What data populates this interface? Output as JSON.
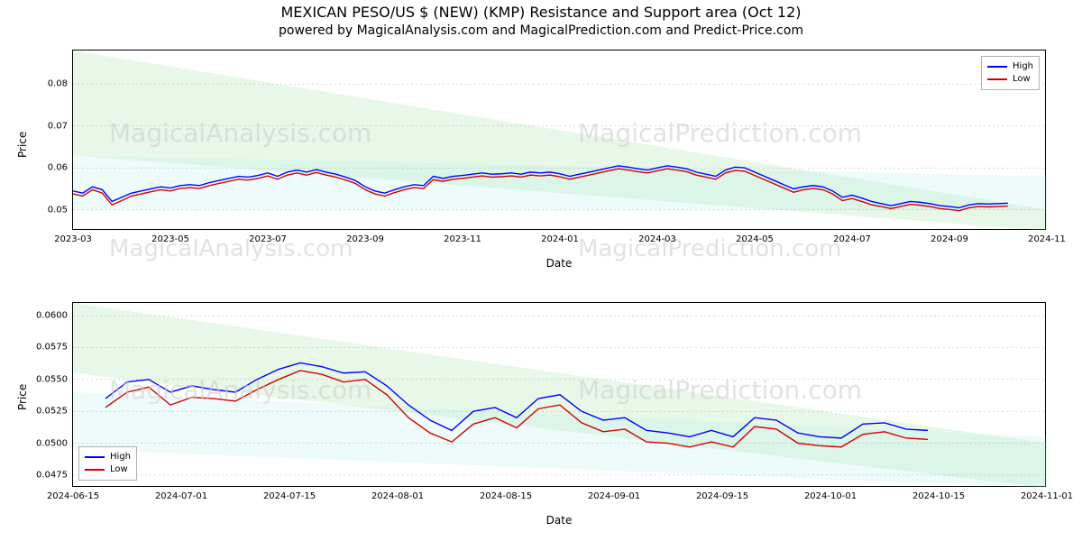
{
  "title": "MEXICAN PESO/US $ (NEW) (KMP) Resistance and Support area (Oct 12)",
  "subtitle": "powered by MagicalAnalysis.com and MagicalPrediction.com and Predict-Price.com",
  "watermarks": [
    "MagicalAnalysis.com",
    "MagicalPrediction.com"
  ],
  "colors": {
    "high": "#0000ff",
    "low": "#d40000",
    "band_green": "#7fd87f",
    "band_cyan": "#a0e8e8",
    "grid": "#b0b0b0",
    "axis": "#000000",
    "background": "#ffffff"
  },
  "legend": {
    "high": "High",
    "low": "Low"
  },
  "panel1": {
    "ylabel": "Price",
    "xlabel": "Date",
    "ylim": [
      0.045,
      0.088
    ],
    "yticks": [
      0.05,
      0.06,
      0.07,
      0.08
    ],
    "xticks": [
      "2023-03",
      "2023-05",
      "2023-07",
      "2023-09",
      "2023-11",
      "2024-01",
      "2024-03",
      "2024-05",
      "2024-07",
      "2024-09",
      "2024-11"
    ],
    "xrange": [
      0,
      20
    ],
    "band_top": {
      "left_y1": 0.088,
      "left_y2": 0.063,
      "right_y1": 0.05,
      "right_y2": 0.045
    },
    "band_mid": {
      "left_y1": 0.063,
      "left_y2": 0.05,
      "right_y1": 0.058,
      "right_y2": 0.05
    },
    "x": [
      0,
      0.2,
      0.4,
      0.6,
      0.8,
      1,
      1.2,
      1.4,
      1.6,
      1.8,
      2,
      2.2,
      2.4,
      2.6,
      2.8,
      3,
      3.2,
      3.4,
      3.6,
      3.8,
      4,
      4.2,
      4.4,
      4.6,
      4.8,
      5,
      5.2,
      5.4,
      5.6,
      5.8,
      6,
      6.2,
      6.4,
      6.6,
      6.8,
      7,
      7.2,
      7.4,
      7.6,
      7.8,
      8,
      8.2,
      8.4,
      8.6,
      8.8,
      9,
      9.2,
      9.4,
      9.6,
      9.8,
      10,
      10.2,
      10.4,
      10.6,
      10.8,
      11,
      11.2,
      11.4,
      11.6,
      11.8,
      12,
      12.2,
      12.4,
      12.6,
      12.8,
      13,
      13.2,
      13.4,
      13.6,
      13.8,
      14,
      14.2,
      14.4,
      14.6,
      14.8,
      15,
      15.2,
      15.4,
      15.6,
      15.8,
      16,
      16.2,
      16.4,
      16.6,
      16.8,
      17,
      17.2,
      17.4,
      17.6,
      17.8,
      18,
      18.2,
      18.4,
      18.6,
      18.8,
      19,
      19.2
    ],
    "high": [
      0.0545,
      0.054,
      0.0555,
      0.0548,
      0.052,
      0.053,
      0.054,
      0.0545,
      0.055,
      0.0555,
      0.0552,
      0.0558,
      0.056,
      0.0558,
      0.0565,
      0.057,
      0.0575,
      0.058,
      0.0578,
      0.0582,
      0.0588,
      0.058,
      0.059,
      0.0595,
      0.059,
      0.0596,
      0.059,
      0.0585,
      0.0578,
      0.057,
      0.0555,
      0.0545,
      0.054,
      0.0548,
      0.0555,
      0.056,
      0.0558,
      0.058,
      0.0575,
      0.058,
      0.0582,
      0.0585,
      0.0588,
      0.0585,
      0.0586,
      0.0588,
      0.0585,
      0.059,
      0.0588,
      0.059,
      0.0586,
      0.058,
      0.0585,
      0.059,
      0.0595,
      0.06,
      0.0605,
      0.0602,
      0.0598,
      0.0595,
      0.06,
      0.0605,
      0.0602,
      0.0598,
      0.059,
      0.0585,
      0.058,
      0.0595,
      0.0602,
      0.06,
      0.059,
      0.058,
      0.057,
      0.056,
      0.055,
      0.0555,
      0.0558,
      0.0555,
      0.0545,
      0.053,
      0.0535,
      0.0528,
      0.052,
      0.0515,
      0.051,
      0.0515,
      0.052,
      0.0518,
      0.0515,
      0.051,
      0.0508,
      0.0505,
      0.0512,
      0.0515,
      0.0514,
      0.0515,
      0.0516
    ],
    "low": [
      0.0538,
      0.0533,
      0.0548,
      0.054,
      0.0512,
      0.0522,
      0.0533,
      0.0538,
      0.0543,
      0.0548,
      0.0545,
      0.0551,
      0.0553,
      0.0551,
      0.0558,
      0.0563,
      0.0568,
      0.0573,
      0.0571,
      0.0575,
      0.0581,
      0.0573,
      0.0583,
      0.0588,
      0.0583,
      0.0589,
      0.0583,
      0.0578,
      0.0571,
      0.0563,
      0.0548,
      0.0538,
      0.0533,
      0.0541,
      0.0548,
      0.0553,
      0.0551,
      0.0572,
      0.0568,
      0.0573,
      0.0575,
      0.0578,
      0.0581,
      0.0578,
      0.0579,
      0.0581,
      0.0578,
      0.0583,
      0.0581,
      0.0583,
      0.0579,
      0.0573,
      0.0578,
      0.0583,
      0.0588,
      0.0593,
      0.0598,
      0.0595,
      0.0591,
      0.0588,
      0.0593,
      0.0598,
      0.0595,
      0.0591,
      0.0583,
      0.0578,
      0.0573,
      0.0588,
      0.0594,
      0.0592,
      0.0582,
      0.0572,
      0.0562,
      0.0552,
      0.0542,
      0.0548,
      0.0551,
      0.0548,
      0.0538,
      0.0522,
      0.0527,
      0.052,
      0.0512,
      0.0508,
      0.0503,
      0.0508,
      0.0513,
      0.0511,
      0.0508,
      0.0503,
      0.0501,
      0.0498,
      0.0505,
      0.0508,
      0.0507,
      0.0508,
      0.0509
    ]
  },
  "panel2": {
    "ylabel": "Price",
    "xlabel": "Date",
    "ylim": [
      0.0465,
      0.061
    ],
    "yticks": [
      0.0475,
      0.05,
      0.0525,
      0.055,
      0.0575,
      0.06
    ],
    "ytick_labels": [
      "0.0475",
      "0.0500",
      "0.0525",
      "0.0550",
      "0.0575",
      "0.0600"
    ],
    "xticks": [
      "2024-06-15",
      "2024-07-01",
      "2024-07-15",
      "2024-08-01",
      "2024-08-15",
      "2024-09-01",
      "2024-09-15",
      "2024-10-01",
      "2024-10-15",
      "2024-11-01"
    ],
    "xrange": [
      0,
      9
    ],
    "band_top": {
      "left_y1": 0.061,
      "left_y2": 0.0555,
      "right_y1": 0.05,
      "right_y2": 0.0465
    },
    "band_bot": {
      "left_y1": 0.054,
      "left_y2": 0.0495,
      "right_y1": 0.0505,
      "right_y2": 0.0465
    },
    "x": [
      0.3,
      0.5,
      0.7,
      0.9,
      1.1,
      1.3,
      1.5,
      1.7,
      1.9,
      2.1,
      2.3,
      2.5,
      2.7,
      2.9,
      3.1,
      3.3,
      3.5,
      3.7,
      3.9,
      4.1,
      4.3,
      4.5,
      4.7,
      4.9,
      5.1,
      5.3,
      5.5,
      5.7,
      5.9,
      6.1,
      6.3,
      6.5,
      6.7,
      6.9,
      7.1,
      7.3,
      7.5,
      7.7,
      7.9
    ],
    "high": [
      0.0535,
      0.0548,
      0.055,
      0.054,
      0.0545,
      0.0542,
      0.054,
      0.055,
      0.0558,
      0.0563,
      0.056,
      0.0555,
      0.0556,
      0.0545,
      0.053,
      0.0518,
      0.051,
      0.0525,
      0.0528,
      0.052,
      0.0535,
      0.0538,
      0.0525,
      0.0518,
      0.052,
      0.051,
      0.0508,
      0.0505,
      0.051,
      0.0505,
      0.052,
      0.0518,
      0.0508,
      0.0505,
      0.0504,
      0.0515,
      0.0516,
      0.0511,
      0.051
    ],
    "low": [
      0.0528,
      0.054,
      0.0544,
      0.053,
      0.0536,
      0.0535,
      0.0533,
      0.0542,
      0.055,
      0.0557,
      0.0554,
      0.0548,
      0.055,
      0.0538,
      0.052,
      0.0508,
      0.0501,
      0.0515,
      0.052,
      0.0512,
      0.0527,
      0.053,
      0.0516,
      0.0509,
      0.0511,
      0.0501,
      0.05,
      0.0497,
      0.0501,
      0.0497,
      0.0513,
      0.0511,
      0.05,
      0.0498,
      0.0497,
      0.0507,
      0.0509,
      0.0504,
      0.0503
    ]
  }
}
